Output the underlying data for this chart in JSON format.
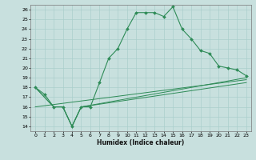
{
  "xlabel": "Humidex (Indice chaleur)",
  "x_ticks": [
    0,
    1,
    2,
    3,
    4,
    5,
    6,
    7,
    8,
    9,
    10,
    11,
    12,
    13,
    14,
    15,
    16,
    17,
    18,
    19,
    20,
    21,
    22,
    23
  ],
  "y_ticks": [
    14,
    15,
    16,
    17,
    18,
    19,
    20,
    21,
    22,
    23,
    24,
    25,
    26
  ],
  "xlim": [
    -0.5,
    23.5
  ],
  "ylim": [
    13.5,
    26.5
  ],
  "line1_x": [
    0,
    1,
    2,
    3,
    4,
    5,
    6,
    7,
    8,
    9,
    10,
    11,
    12,
    13,
    14,
    15,
    16,
    17,
    18,
    19,
    20,
    21,
    22,
    23
  ],
  "line1_y": [
    18,
    17.3,
    16,
    16,
    14,
    16,
    16,
    18.5,
    21,
    22,
    24,
    25.7,
    25.7,
    25.7,
    25.3,
    26.3,
    24,
    23,
    21.8,
    21.5,
    20.2,
    20,
    19.8,
    19.2
  ],
  "line2_x": [
    0,
    2,
    3,
    4,
    5,
    23
  ],
  "line2_y": [
    18,
    16,
    16,
    14,
    16,
    19
  ],
  "line3_x": [
    0,
    2,
    3,
    4,
    5,
    23
  ],
  "line3_y": [
    18,
    16,
    16,
    14,
    16,
    18.5
  ],
  "line4_x": [
    0,
    23
  ],
  "line4_y": [
    16,
    18.8
  ],
  "color": "#2e8b57",
  "bg_color": "#c8e0de",
  "grid_color": "#aacfcc"
}
